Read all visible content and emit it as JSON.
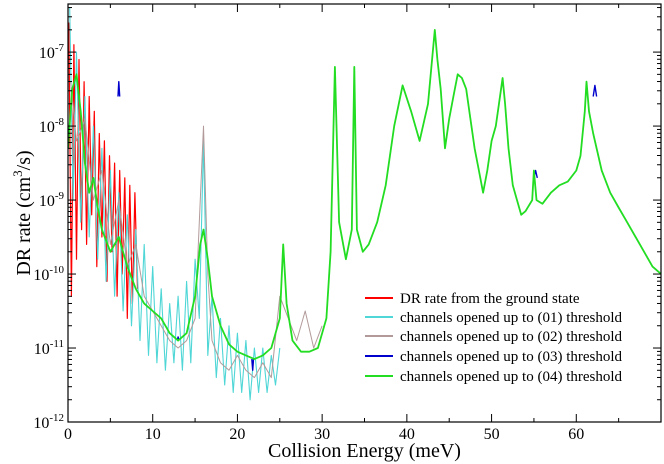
{
  "chart_data": {
    "type": "line",
    "title": "",
    "xlabel": "Collision Energy (meV)",
    "ylabel_prefix": "DR rate (cm",
    "ylabel_sup": "3",
    "ylabel_suffix": "/s)",
    "xlim": [
      0,
      70
    ],
    "ylim_log10": [
      -12,
      -6.35
    ],
    "yscale": "log",
    "grid": false,
    "legend_position": "lower-right",
    "x_ticks": [
      {
        "value": 0,
        "label": "0"
      },
      {
        "value": 10,
        "label": "10"
      },
      {
        "value": 20,
        "label": "20"
      },
      {
        "value": 30,
        "label": "30"
      },
      {
        "value": 40,
        "label": "40"
      },
      {
        "value": 50,
        "label": "50"
      },
      {
        "value": 60,
        "label": "60"
      }
    ],
    "y_ticks": [
      {
        "exp": -12,
        "base": "10",
        "sup": "-12"
      },
      {
        "exp": -11,
        "base": "10",
        "sup": "-11"
      },
      {
        "exp": -10,
        "base": "10",
        "sup": "-10"
      },
      {
        "exp": -9,
        "base": "10",
        "sup": "-9"
      },
      {
        "exp": -8,
        "base": "10",
        "sup": "-8"
      },
      {
        "exp": -7,
        "base": "10",
        "sup": "-7"
      }
    ],
    "series": [
      {
        "name": "DR rate from the ground state",
        "color": "#ff0000",
        "x": [
          0.1,
          0.4,
          0.7,
          1.0,
          1.3,
          1.6,
          1.9,
          2.2,
          2.5,
          2.8,
          3.1,
          3.4,
          3.7,
          4.0,
          4.3,
          4.6,
          4.9,
          5.2,
          5.5,
          5.8,
          6.1,
          6.4,
          6.7,
          7.0,
          7.3,
          7.6,
          7.9,
          8.2
        ],
        "y_log10": [
          -6.6,
          -10.3,
          -6.9,
          -9.8,
          -7.1,
          -9.4,
          -7.4,
          -9.6,
          -7.6,
          -9.2,
          -7.8,
          -9.9,
          -8.1,
          -9.5,
          -8.2,
          -10.1,
          -8.4,
          -9.7,
          -8.5,
          -10.3,
          -8.6,
          -10.0,
          -8.7,
          -10.6,
          -8.8,
          -10.4,
          -8.9,
          -10.2
        ]
      },
      {
        "name": "channels opened up to (01) threshold",
        "color": "#4fd6d6",
        "x": [
          0.2,
          0.6,
          1.0,
          1.5,
          2.0,
          2.5,
          3.0,
          3.5,
          4.0,
          4.5,
          5.0,
          5.5,
          6.0,
          6.5,
          7.0,
          7.5,
          8.0,
          8.5,
          9.0,
          9.5,
          10.0,
          10.5,
          11.0,
          11.5,
          12.0,
          12.5,
          13.0,
          13.5,
          14.0,
          14.5,
          15.0,
          15.5,
          16.0,
          16.5,
          17.0,
          17.5,
          18.0,
          18.5,
          19.0,
          19.5,
          20.0,
          20.5,
          21.0,
          21.5,
          22.0,
          22.5,
          23.0,
          23.5,
          24.0,
          24.5,
          25.0
        ],
        "y_log10": [
          -6.4,
          -9.0,
          -7.0,
          -9.3,
          -7.6,
          -9.5,
          -8.0,
          -9.8,
          -8.3,
          -10.1,
          -8.6,
          -10.3,
          -8.9,
          -10.5,
          -9.2,
          -10.7,
          -9.4,
          -10.9,
          -9.6,
          -11.1,
          -9.9,
          -11.2,
          -10.2,
          -11.3,
          -10.4,
          -11.2,
          -10.3,
          -11.3,
          -10.1,
          -11.2,
          -9.8,
          -10.6,
          -8.2,
          -11.1,
          -10.3,
          -11.4,
          -10.6,
          -11.5,
          -10.7,
          -11.6,
          -10.8,
          -11.6,
          -10.9,
          -11.7,
          -11.0,
          -11.6,
          -11.0,
          -11.6,
          -11.1,
          -11.5,
          -11.0
        ]
      },
      {
        "name": "channels opened up to (02) threshold",
        "color": "#b39a9a",
        "x": [
          0.3,
          1.0,
          2.0,
          3.0,
          4.0,
          5.0,
          6.0,
          7.0,
          8.0,
          9.0,
          10.0,
          11.0,
          12.0,
          13.0,
          14.0,
          15.0,
          16.0,
          16.5,
          17.0,
          18.0,
          19.0,
          20.0,
          21.0,
          22.0,
          23.0,
          24.0,
          25.0,
          26.0,
          27.0,
          28.0,
          29.0,
          30.0
        ],
        "y_log10": [
          -7.4,
          -8.2,
          -7.9,
          -9.0,
          -8.6,
          -9.6,
          -9.0,
          -9.9,
          -9.6,
          -10.3,
          -10.5,
          -10.7,
          -10.9,
          -11.0,
          -10.9,
          -10.6,
          -8.0,
          -10.0,
          -10.9,
          -11.2,
          -11.3,
          -11.1,
          -11.3,
          -11.4,
          -11.2,
          -11.4,
          -10.3,
          -10.6,
          -10.9,
          -10.5,
          -11.0,
          -10.7
        ]
      },
      {
        "name": "channels opened up to (03) threshold",
        "color": "#0000cc",
        "x": [
          5.9,
          6.0,
          6.1,
          12.9,
          13.0,
          13.1,
          21.7,
          21.8,
          21.9,
          55.0,
          55.2,
          55.4,
          62.0,
          62.2,
          62.4
        ],
        "y_log10": [
          -7.6,
          -7.4,
          -7.6,
          -10.9,
          -10.85,
          -10.9,
          -11.15,
          -11.3,
          -11.15,
          -8.7,
          -8.6,
          -8.7,
          -7.6,
          -7.45,
          -7.6
        ]
      },
      {
        "name": "channels opened up to (04) threshold",
        "color": "#22dd22",
        "x": [
          0.0,
          0.5,
          1.0,
          1.5,
          2.0,
          2.5,
          3.0,
          3.5,
          4.0,
          5.0,
          6.0,
          7.0,
          8.0,
          9.0,
          10.0,
          11.0,
          12.0,
          13.0,
          14.0,
          15.0,
          15.6,
          16.0,
          16.5,
          17.0,
          18.0,
          19.0,
          20.0,
          21.0,
          22.0,
          23.0,
          24.0,
          25.0,
          25.4,
          25.8,
          26.5,
          27.5,
          28.5,
          29.5,
          30.5,
          31.0,
          31.5,
          32.0,
          32.8,
          33.5,
          33.8,
          34.1,
          34.8,
          35.5,
          36.5,
          37.5,
          38.5,
          39.5,
          40.5,
          41.5,
          42.5,
          43.3,
          43.6,
          44.0,
          44.5,
          45.0,
          45.5,
          46.0,
          46.5,
          47.0,
          47.5,
          48.0,
          48.5,
          49.0,
          49.5,
          50.0,
          50.5,
          51.0,
          51.3,
          51.6,
          52.0,
          52.5,
          53.0,
          53.5,
          54.0,
          54.8,
          55.0,
          55.3,
          56.0,
          57.0,
          58.0,
          59.0,
          60.0,
          60.5,
          61.0,
          61.2,
          61.5,
          62.0,
          63.0,
          64.0,
          65.0,
          66.0,
          67.0,
          68.0,
          69.0,
          70.0
        ],
        "y_log10": [
          -8.3,
          -7.5,
          -7.3,
          -7.8,
          -8.5,
          -8.9,
          -8.7,
          -9.1,
          -9.4,
          -9.7,
          -9.5,
          -9.9,
          -10.2,
          -10.4,
          -10.5,
          -10.6,
          -10.8,
          -10.9,
          -10.8,
          -10.3,
          -9.6,
          -9.4,
          -9.8,
          -10.3,
          -10.7,
          -10.95,
          -11.05,
          -11.1,
          -11.15,
          -11.1,
          -11.0,
          -10.6,
          -9.6,
          -10.4,
          -10.9,
          -11.05,
          -11.05,
          -11.0,
          -10.6,
          -9.7,
          -7.2,
          -9.3,
          -9.8,
          -9.4,
          -7.2,
          -9.4,
          -9.7,
          -9.6,
          -9.3,
          -8.8,
          -8.0,
          -7.45,
          -7.8,
          -8.2,
          -7.7,
          -6.7,
          -7.1,
          -7.5,
          -8.3,
          -7.9,
          -7.6,
          -7.3,
          -7.35,
          -7.5,
          -7.9,
          -8.3,
          -8.6,
          -8.9,
          -8.6,
          -8.2,
          -8.0,
          -7.6,
          -7.35,
          -7.7,
          -8.3,
          -8.8,
          -9.0,
          -9.2,
          -9.15,
          -9.0,
          -8.6,
          -9.0,
          -9.05,
          -8.9,
          -8.8,
          -8.75,
          -8.6,
          -8.4,
          -7.8,
          -7.4,
          -7.8,
          -8.1,
          -8.6,
          -8.9,
          -9.1,
          -9.3,
          -9.5,
          -9.7,
          -9.9,
          -10.0
        ]
      }
    ]
  }
}
